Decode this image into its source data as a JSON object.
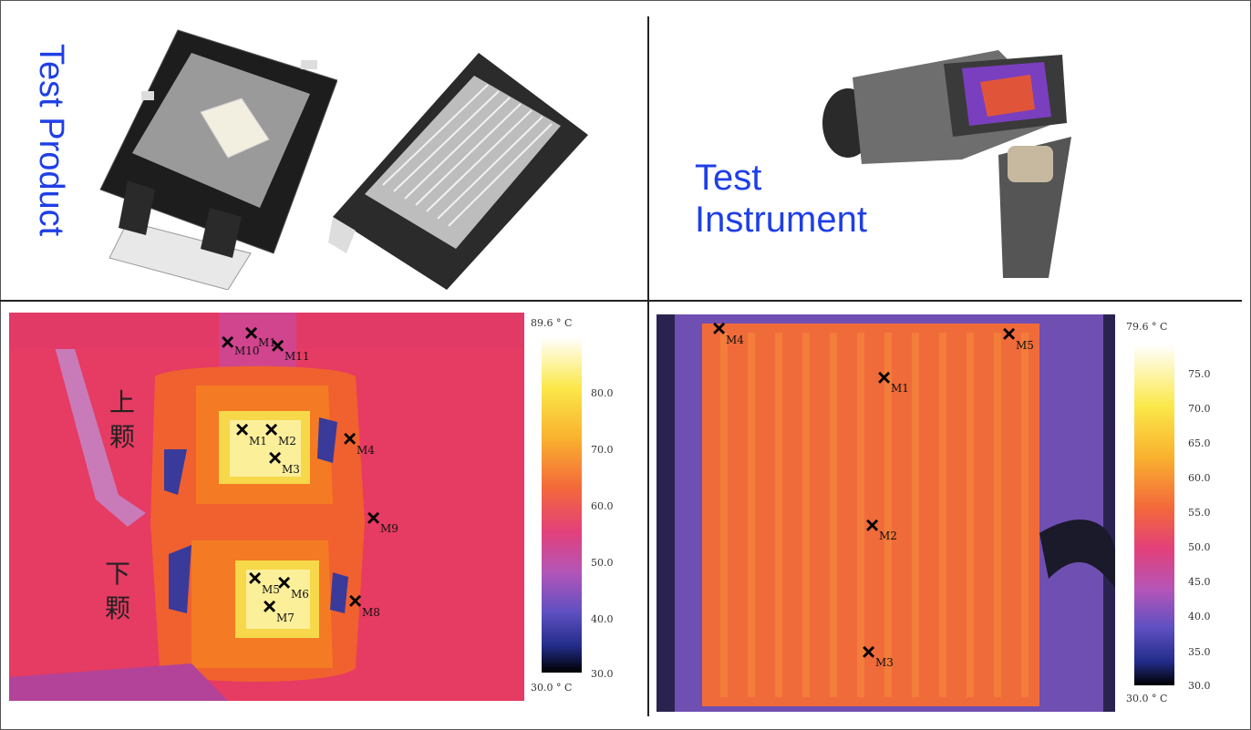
{
  "top_left": {
    "label": "Test Product"
  },
  "top_right": {
    "label_line1": "Test",
    "label_line2": "Instrument"
  },
  "thermal_left": {
    "scale_max": "89.6 ° C",
    "scale_min": "30.0 ° C",
    "ticks": [
      "80.0",
      "70.0",
      "60.0",
      "50.0",
      "40.0",
      "30.0"
    ],
    "labels": {
      "upper": "上\n颗",
      "lower": "下\n颗"
    },
    "markers": [
      "M1",
      "M2",
      "M3",
      "M4",
      "M5",
      "M6",
      "M7",
      "M8",
      "M9",
      "M10",
      "M11",
      "M1"
    ]
  },
  "thermal_right": {
    "scale_max": "79.6 ° C",
    "scale_min": "30.0 ° C",
    "ticks": [
      "75.0",
      "70.0",
      "65.0",
      "60.0",
      "55.0",
      "50.0",
      "45.0",
      "40.0",
      "35.0",
      "30.0"
    ],
    "markers": [
      "M1",
      "M2",
      "M3",
      "M4",
      "M5"
    ]
  },
  "colors": {
    "accent": "#1f3fe6"
  }
}
